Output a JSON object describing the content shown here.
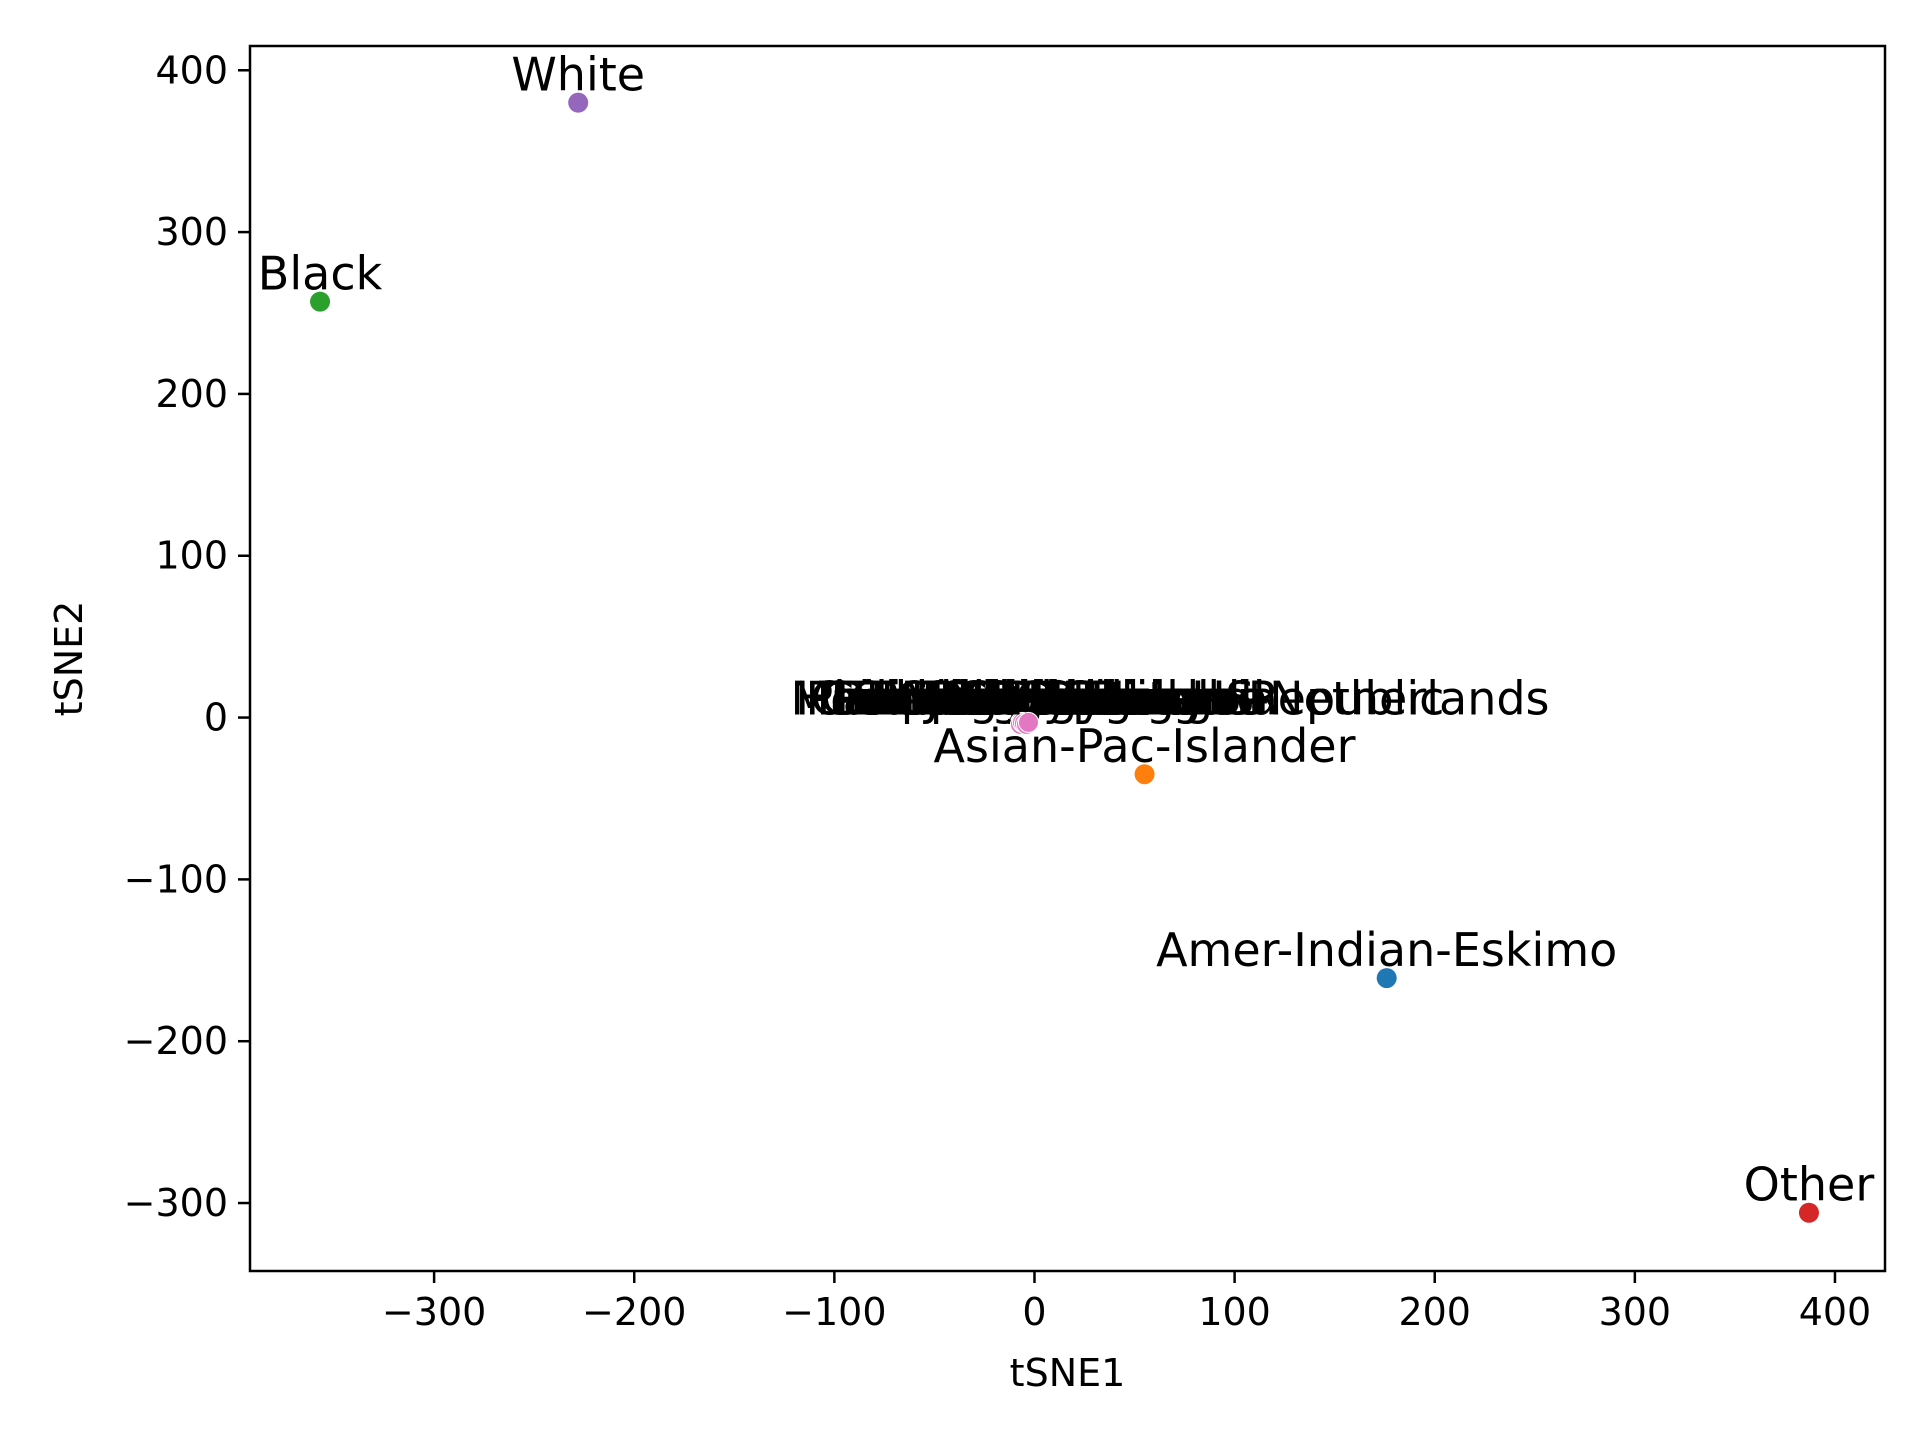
{
  "chart_data": {
    "type": "scatter",
    "title": "",
    "xlabel": "tSNE1",
    "ylabel": "tSNE2",
    "xlim": [
      -392,
      425
    ],
    "ylim": [
      -342,
      415
    ],
    "xticks": [
      -300,
      -200,
      -100,
      0,
      100,
      200,
      300,
      400
    ],
    "yticks": [
      -300,
      -200,
      -100,
      0,
      100,
      200,
      300,
      400
    ],
    "xtick_labels": [
      "−300",
      "−200",
      "−100",
      "0",
      "100",
      "200",
      "300",
      "400"
    ],
    "ytick_labels": [
      "−300",
      "−200",
      "−100",
      "0",
      "100",
      "200",
      "300",
      "400"
    ],
    "grid": false,
    "points": [
      {
        "label": "White",
        "x": -228,
        "y": 380,
        "color": "#9467bd"
      },
      {
        "label": "Black",
        "x": -357,
        "y": 257,
        "color": "#2ca02c"
      },
      {
        "label": "Asian-Pac-Islander",
        "x": 55,
        "y": -35,
        "color": "#ff7f0e"
      },
      {
        "label": "Amer-Indian-Eskimo",
        "x": 176,
        "y": -161,
        "color": "#1f77b4"
      },
      {
        "label": "Other",
        "x": 387,
        "y": -306,
        "color": "#d62728"
      }
    ],
    "cluster": {
      "note_labels": [
        "Mexico",
        "Philippines",
        "Germany",
        "Puerto-Rico",
        "Canada",
        "El-Salvador",
        "India",
        "Cuba",
        "England",
        "Jamaica",
        "South",
        "China",
        "Italy",
        "Dominican-Republic",
        "Vietnam",
        "Guatemala",
        "Japan",
        "Poland",
        "Columbia",
        "Taiwan",
        "Haiti",
        "Iran",
        "Portugal",
        "Nicaragua",
        "Peru",
        "Greece",
        "France",
        "Ecuador",
        "Ireland",
        "Hong",
        "Cambodia",
        "Trinadad&Tobago",
        "Laos",
        "Thailand",
        "Yugoslavia",
        "Outlying-US",
        "Hungary",
        "Honduras",
        "Scotland",
        "Holand-Netherlands"
      ],
      "x": -7,
      "y": -3,
      "color": "#e377c2"
    }
  }
}
